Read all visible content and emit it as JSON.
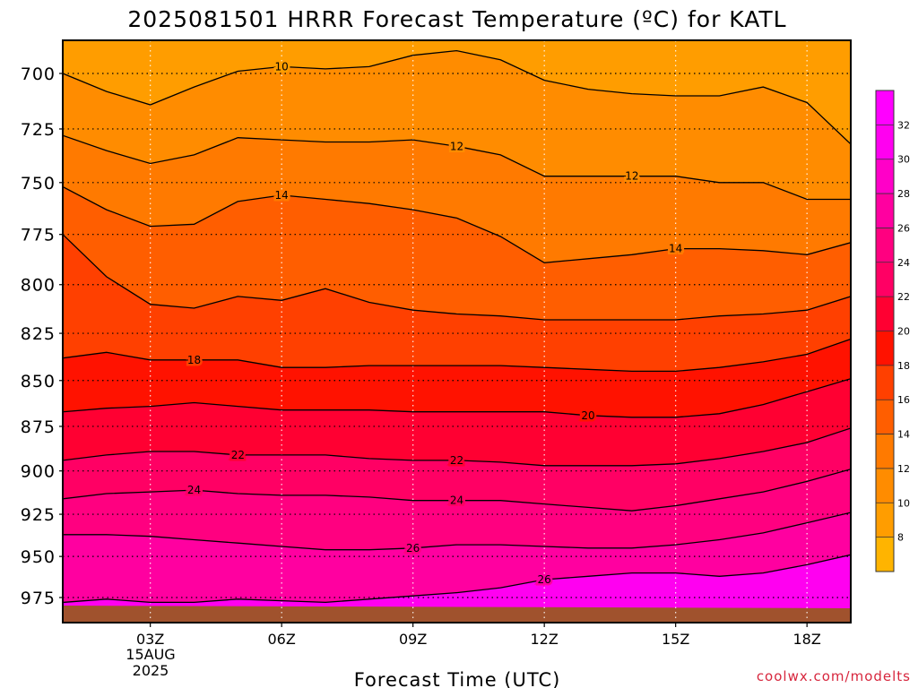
{
  "chart_data": {
    "type": "contour",
    "title": "2025081501 HRRR Forecast Temperature (ºC) for KATL",
    "xlabel": "Forecast Time (UTC)",
    "ylabel": "",
    "credit": "coolwx.com/modelts",
    "x_ticks": [
      "03Z",
      "06Z",
      "09Z",
      "12Z",
      "15Z",
      "18Z"
    ],
    "x_tick_hours": [
      3,
      6,
      9,
      12,
      15,
      18
    ],
    "x_date_label": [
      "15AUG",
      "2025"
    ],
    "xlim": [
      1,
      19
    ],
    "y_ticks": [
      700,
      725,
      750,
      775,
      800,
      825,
      850,
      875,
      900,
      925,
      950,
      975
    ],
    "ylim": [
      980,
      683
    ],
    "y_scale": "log-pressure",
    "grid": true,
    "colorbar": {
      "levels": [
        8,
        10,
        12,
        14,
        16,
        18,
        20,
        22,
        24,
        26,
        28,
        30,
        32
      ],
      "colors": [
        "#ffb400",
        "#ff9d00",
        "#ff8c00",
        "#ff7a00",
        "#ff5e00",
        "#ff4000",
        "#ff1200",
        "#ff0032",
        "#ff0064",
        "#ff0080",
        "#ff00a0",
        "#ff00c8",
        "#ff00f0",
        "#ff00ff"
      ],
      "position": "right"
    },
    "ground_color": "#a0522d",
    "series": [
      {
        "level": 10,
        "label": "10",
        "hours": [
          1,
          2,
          3,
          4,
          5,
          6,
          7,
          8,
          9,
          10,
          11,
          12,
          13,
          14,
          15,
          16,
          17,
          18,
          19
        ],
        "pressure": [
          700,
          708,
          714,
          706,
          699,
          697,
          698,
          697,
          692,
          690,
          694,
          703,
          707,
          709,
          710,
          710,
          706,
          713,
          732
        ]
      },
      {
        "level": 12,
        "label": "12",
        "hours": [
          1,
          2,
          3,
          4,
          5,
          6,
          7,
          8,
          9,
          10,
          11,
          12,
          13,
          14,
          15,
          16,
          17,
          18,
          19
        ],
        "pressure": [
          728,
          735,
          741,
          737,
          729,
          730,
          731,
          731,
          730,
          733,
          737,
          747,
          747,
          747,
          747,
          750,
          750,
          758,
          758
        ]
      },
      {
        "level": 14,
        "label": "14",
        "hours": [
          1,
          2,
          3,
          4,
          5,
          6,
          7,
          8,
          9,
          10,
          11,
          12,
          13,
          14,
          15,
          16,
          17,
          18,
          19
        ],
        "pressure": [
          752,
          763,
          771,
          770,
          759,
          756,
          758,
          760,
          763,
          767,
          776,
          789,
          787,
          785,
          782,
          782,
          783,
          785,
          779
        ]
      },
      {
        "level": 16,
        "label": "",
        "hours": [
          1,
          2,
          3,
          4,
          5,
          6,
          7,
          8,
          9,
          10,
          11,
          12,
          13,
          14,
          15,
          16,
          17,
          18,
          19
        ],
        "pressure": [
          775,
          796,
          810,
          812,
          806,
          808,
          802,
          809,
          813,
          815,
          816,
          818,
          818,
          818,
          818,
          816,
          815,
          813,
          806
        ]
      },
      {
        "level": 18,
        "label": "18",
        "hours": [
          1,
          2,
          3,
          4,
          5,
          6,
          7,
          8,
          9,
          10,
          11,
          12,
          13,
          14,
          15,
          16,
          17,
          18,
          19
        ],
        "pressure": [
          838,
          835,
          839,
          839,
          839,
          843,
          843,
          842,
          842,
          842,
          842,
          843,
          844,
          845,
          845,
          843,
          840,
          836,
          828
        ]
      },
      {
        "level": 20,
        "label": "20",
        "hours": [
          1,
          2,
          3,
          4,
          5,
          6,
          7,
          8,
          9,
          10,
          11,
          12,
          13,
          14,
          15,
          16,
          17,
          18,
          19
        ],
        "pressure": [
          867,
          865,
          864,
          862,
          864,
          866,
          866,
          866,
          867,
          867,
          867,
          867,
          869,
          870,
          870,
          868,
          863,
          856,
          849
        ]
      },
      {
        "level": 22,
        "label": "22",
        "hours": [
          1,
          2,
          3,
          4,
          5,
          6,
          7,
          8,
          9,
          10,
          11,
          12,
          13,
          14,
          15,
          16,
          17,
          18,
          19
        ],
        "pressure": [
          894,
          891,
          889,
          889,
          891,
          891,
          891,
          893,
          894,
          894,
          895,
          897,
          897,
          897,
          896,
          893,
          889,
          884,
          876
        ]
      },
      {
        "level": 24,
        "label": "24",
        "hours": [
          1,
          2,
          3,
          4,
          5,
          6,
          7,
          8,
          9,
          10,
          11,
          12,
          13,
          14,
          15,
          16,
          17,
          18,
          19
        ],
        "pressure": [
          916,
          913,
          912,
          911,
          913,
          914,
          914,
          915,
          917,
          917,
          917,
          919,
          921,
          923,
          920,
          916,
          912,
          906,
          899
        ]
      },
      {
        "level": 26,
        "label": "26",
        "hours": [
          1,
          2,
          3,
          4,
          5,
          6,
          7,
          8,
          9,
          10,
          11,
          12,
          13,
          14,
          15,
          16,
          17,
          18,
          19
        ],
        "pressure": [
          937,
          937,
          938,
          940,
          942,
          944,
          946,
          946,
          945,
          943,
          943,
          944,
          945,
          945,
          943,
          940,
          936,
          930,
          924
        ]
      },
      {
        "level": 26,
        "label": "26",
        "hours": [
          1,
          2,
          3,
          4,
          5,
          6,
          7,
          8,
          9,
          10,
          11,
          12,
          13,
          14,
          15,
          16,
          17,
          18,
          19
        ],
        "pressure": [
          978,
          976,
          978,
          978,
          976,
          977,
          978,
          976,
          974,
          972,
          969,
          964,
          962,
          960,
          960,
          962,
          960,
          955,
          949
        ]
      }
    ]
  }
}
